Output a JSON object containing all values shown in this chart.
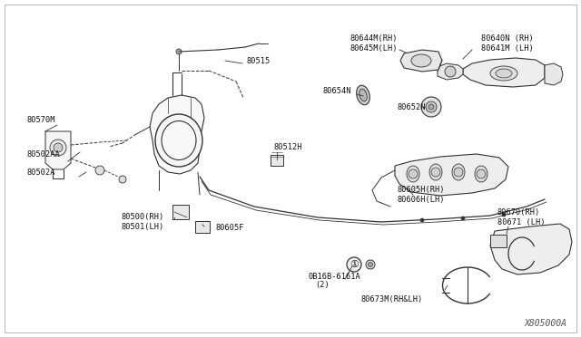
{
  "background_color": "#ffffff",
  "border_color": "#bbbbbb",
  "line_color": "#333333",
  "text_color": "#111111",
  "font_size": 6.2,
  "watermark": "X805000A",
  "xlim": [
    0,
    640
  ],
  "ylim": [
    0,
    372
  ]
}
